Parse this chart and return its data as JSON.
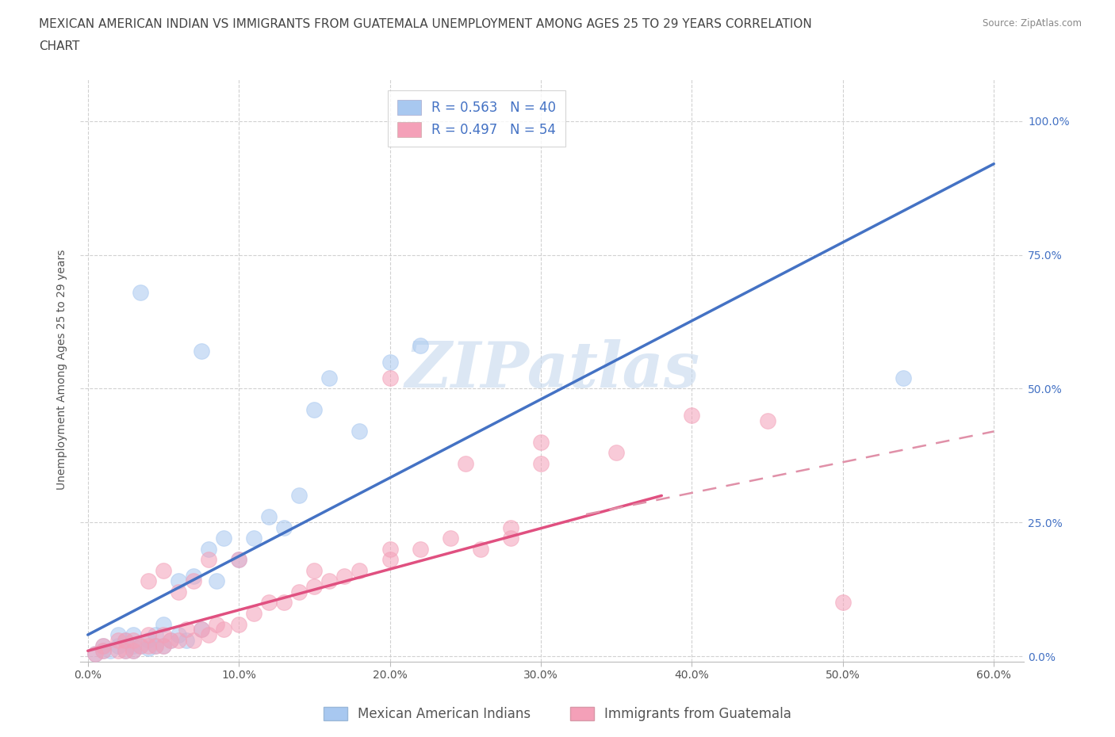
{
  "title_line1": "MEXICAN AMERICAN INDIAN VS IMMIGRANTS FROM GUATEMALA UNEMPLOYMENT AMONG AGES 25 TO 29 YEARS CORRELATION",
  "title_line2": "CHART",
  "source": "Source: ZipAtlas.com",
  "ylabel": "Unemployment Among Ages 25 to 29 years",
  "xlabel_ticks": [
    "0.0%",
    "10.0%",
    "20.0%",
    "30.0%",
    "40.0%",
    "50.0%",
    "60.0%"
  ],
  "ytick_labels": [
    "0.0%",
    "25.0%",
    "50.0%",
    "75.0%",
    "100.0%"
  ],
  "ytick_values": [
    0.0,
    0.25,
    0.5,
    0.75,
    1.0
  ],
  "xtick_values": [
    0.0,
    0.1,
    0.2,
    0.3,
    0.4,
    0.5,
    0.6
  ],
  "xlim": [
    -0.005,
    0.62
  ],
  "ylim": [
    -0.01,
    1.08
  ],
  "legend_entries": [
    {
      "label": "R = 0.563   N = 40",
      "color": "#a8c8f0"
    },
    {
      "label": "R = 0.497   N = 54",
      "color": "#f4a0b8"
    }
  ],
  "legend_bottom": [
    "Mexican American Indians",
    "Immigrants from Guatemala"
  ],
  "watermark": "ZIPatlas",
  "blue_scatter_x": [
    0.005,
    0.01,
    0.01,
    0.015,
    0.02,
    0.02,
    0.025,
    0.025,
    0.03,
    0.03,
    0.03,
    0.035,
    0.04,
    0.04,
    0.045,
    0.045,
    0.05,
    0.05,
    0.055,
    0.06,
    0.06,
    0.065,
    0.07,
    0.075,
    0.08,
    0.085,
    0.09,
    0.1,
    0.11,
    0.12,
    0.13,
    0.14,
    0.15,
    0.16,
    0.18,
    0.2,
    0.22,
    0.54,
    0.035,
    0.075
  ],
  "blue_scatter_y": [
    0.005,
    0.01,
    0.02,
    0.01,
    0.02,
    0.04,
    0.01,
    0.03,
    0.01,
    0.02,
    0.04,
    0.02,
    0.015,
    0.03,
    0.02,
    0.04,
    0.02,
    0.06,
    0.03,
    0.04,
    0.14,
    0.03,
    0.15,
    0.05,
    0.2,
    0.14,
    0.22,
    0.18,
    0.22,
    0.26,
    0.24,
    0.3,
    0.46,
    0.52,
    0.42,
    0.55,
    0.58,
    0.52,
    0.68,
    0.57
  ],
  "pink_scatter_x": [
    0.005,
    0.01,
    0.01,
    0.02,
    0.02,
    0.025,
    0.025,
    0.03,
    0.03,
    0.035,
    0.04,
    0.04,
    0.045,
    0.05,
    0.05,
    0.055,
    0.06,
    0.065,
    0.07,
    0.075,
    0.08,
    0.085,
    0.09,
    0.1,
    0.11,
    0.12,
    0.13,
    0.14,
    0.15,
    0.16,
    0.17,
    0.18,
    0.2,
    0.22,
    0.24,
    0.26,
    0.28,
    0.3,
    0.35,
    0.4,
    0.2,
    0.25,
    0.3,
    0.45,
    0.1,
    0.15,
    0.2,
    0.28,
    0.5,
    0.04,
    0.05,
    0.06,
    0.07,
    0.08
  ],
  "pink_scatter_y": [
    0.005,
    0.01,
    0.02,
    0.01,
    0.03,
    0.01,
    0.03,
    0.01,
    0.03,
    0.02,
    0.02,
    0.04,
    0.02,
    0.02,
    0.04,
    0.03,
    0.03,
    0.05,
    0.03,
    0.05,
    0.04,
    0.06,
    0.05,
    0.06,
    0.08,
    0.1,
    0.1,
    0.12,
    0.13,
    0.14,
    0.15,
    0.16,
    0.18,
    0.2,
    0.22,
    0.2,
    0.22,
    0.36,
    0.38,
    0.45,
    0.52,
    0.36,
    0.4,
    0.44,
    0.18,
    0.16,
    0.2,
    0.24,
    0.1,
    0.14,
    0.16,
    0.12,
    0.14,
    0.18
  ],
  "blue_line_x": [
    0.0,
    0.6
  ],
  "blue_line_y": [
    0.04,
    0.92
  ],
  "pink_solid_line_x": [
    0.0,
    0.38
  ],
  "pink_solid_line_y": [
    0.01,
    0.3
  ],
  "pink_dashed_line_x": [
    0.33,
    0.6
  ],
  "pink_dashed_line_y": [
    0.265,
    0.42
  ],
  "scatter_color_blue": "#a8c8f0",
  "scatter_color_pink": "#f4a0b8",
  "line_color_blue": "#4472c4",
  "line_color_pink": "#e05080",
  "line_color_pink_dashed": "#e090a8",
  "grid_color": "#cccccc",
  "background_color": "#ffffff",
  "watermark_color": "#c5d8ee",
  "title_fontsize": 11,
  "axis_label_fontsize": 10,
  "tick_fontsize": 10,
  "legend_fontsize": 12
}
